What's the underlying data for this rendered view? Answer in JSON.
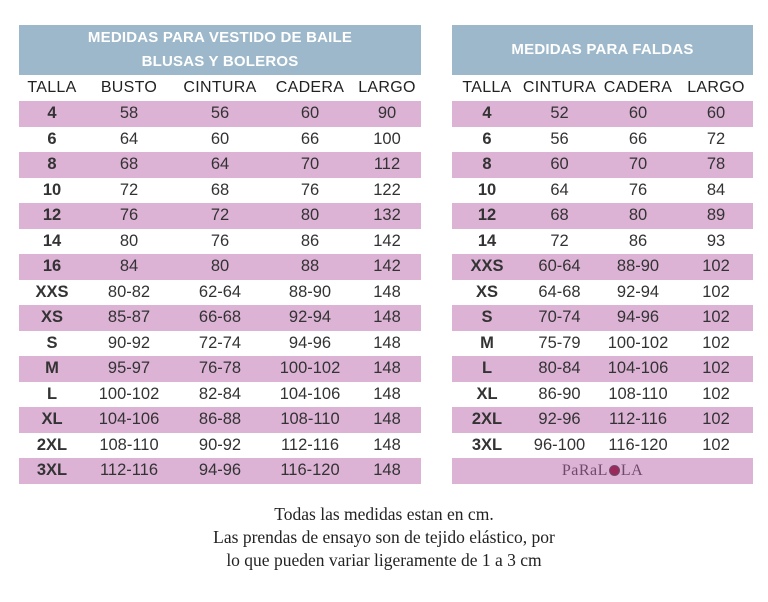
{
  "dress_table": {
    "title_line1": "MEDIDAS PARA  VESTIDO DE BAILE",
    "title_line2": "BLUSAS Y BOLEROS",
    "columns": [
      "TALLA",
      "BUSTO",
      "CINTURA",
      "CADERA",
      "LARGO"
    ],
    "rows": [
      [
        "4",
        "58",
        "56",
        "60",
        "90"
      ],
      [
        "6",
        "64",
        "60",
        "66",
        "100"
      ],
      [
        "8",
        "68",
        "64",
        "70",
        "112"
      ],
      [
        "10",
        "72",
        "68",
        "76",
        "122"
      ],
      [
        "12",
        "76",
        "72",
        "80",
        "132"
      ],
      [
        "14",
        "80",
        "76",
        "86",
        "142"
      ],
      [
        "16",
        "84",
        "80",
        "88",
        "142"
      ],
      [
        "XXS",
        "80-82",
        "62-64",
        "88-90",
        "148"
      ],
      [
        "XS",
        "85-87",
        "66-68",
        "92-94",
        "148"
      ],
      [
        "S",
        "90-92",
        "72-74",
        "94-96",
        "148"
      ],
      [
        "M",
        "95-97",
        "76-78",
        "100-102",
        "148"
      ],
      [
        "L",
        "100-102",
        "82-84",
        "104-106",
        "148"
      ],
      [
        "XL",
        "104-106",
        "86-88",
        "108-110",
        "148"
      ],
      [
        "2XL",
        "108-110",
        "90-92",
        "112-116",
        "148"
      ],
      [
        "3XL",
        "112-116",
        "94-96",
        "116-120",
        "148"
      ]
    ]
  },
  "skirt_table": {
    "title": "MEDIDAS PARA FALDAS",
    "columns": [
      "TALLA",
      "CINTURA",
      "CADERA",
      "LARGO"
    ],
    "rows": [
      [
        "4",
        "52",
        "60",
        "60"
      ],
      [
        "6",
        "56",
        "66",
        "72"
      ],
      [
        "8",
        "60",
        "70",
        "78"
      ],
      [
        "10",
        "64",
        "76",
        "84"
      ],
      [
        "12",
        "68",
        "80",
        "89"
      ],
      [
        "14",
        "72",
        "86",
        "93"
      ],
      [
        "XXS",
        "60-64",
        "88-90",
        "102"
      ],
      [
        "XS",
        "64-68",
        "92-94",
        "102"
      ],
      [
        "S",
        "70-74",
        "94-96",
        "102"
      ],
      [
        "M",
        "75-79",
        "100-102",
        "102"
      ],
      [
        "L",
        "80-84",
        "104-106",
        "102"
      ],
      [
        "XL",
        "86-90",
        "108-110",
        "102"
      ],
      [
        "2XL",
        "92-96",
        "112-116",
        "102"
      ],
      [
        "3XL",
        "96-100",
        "116-120",
        "102"
      ]
    ],
    "brand_left": "PaRaL",
    "brand_right": "LA"
  },
  "footnote": {
    "line1": "Todas las medidas estan en cm.",
    "line2": "Las prendas de ensayo son de tejido elástico, por",
    "line3": "lo que pueden variar ligeramente de 1 a 3 cm"
  },
  "colors": {
    "header_blue": "#9db8ca",
    "row_pink": "#dcb3d5",
    "brand": "#6f4a6b"
  }
}
